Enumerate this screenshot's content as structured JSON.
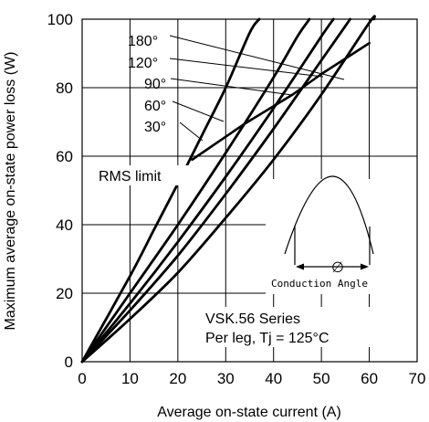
{
  "chart_data": {
    "type": "line",
    "xlabel": "Average on-state current (A)",
    "ylabel": "Maximum average on-state power loss (W)",
    "xlim": [
      0,
      70
    ],
    "ylim": [
      0,
      100
    ],
    "x_ticks": [
      "0",
      "10",
      "20",
      "30",
      "40",
      "50",
      "60",
      "70"
    ],
    "y_ticks": [
      "0",
      "20",
      "40",
      "60",
      "80",
      "100"
    ],
    "grid": true,
    "series": [
      {
        "name": "30°",
        "points": [
          [
            0,
            0
          ],
          [
            10,
            25
          ],
          [
            15,
            38.5
          ],
          [
            20,
            52
          ],
          [
            25,
            66
          ],
          [
            30,
            80
          ],
          [
            35,
            96
          ],
          [
            37,
            100
          ]
        ]
      },
      {
        "name": "60°",
        "points": [
          [
            0,
            0
          ],
          [
            10,
            20
          ],
          [
            20,
            40
          ],
          [
            30,
            61
          ],
          [
            40,
            83
          ],
          [
            45,
            95
          ],
          [
            47.5,
            100
          ]
        ]
      },
      {
        "name": "90°",
        "points": [
          [
            0,
            0
          ],
          [
            10,
            17
          ],
          [
            20,
            35
          ],
          [
            30,
            54
          ],
          [
            40,
            74
          ],
          [
            50,
            95
          ],
          [
            52.5,
            100
          ]
        ]
      },
      {
        "name": "120°",
        "points": [
          [
            0,
            0
          ],
          [
            10,
            15
          ],
          [
            20,
            31
          ],
          [
            30,
            49
          ],
          [
            40,
            68
          ],
          [
            50,
            88
          ],
          [
            56,
            100
          ]
        ]
      },
      {
        "name": "180°",
        "points": [
          [
            0,
            0
          ],
          [
            10,
            12.5
          ],
          [
            20,
            26
          ],
          [
            30,
            42
          ],
          [
            40,
            59
          ],
          [
            50,
            78
          ],
          [
            60,
            99
          ],
          [
            61,
            100
          ]
        ]
      },
      {
        "name": "RMS limit",
        "points": [
          [
            23,
            59
          ],
          [
            34,
            69.5
          ],
          [
            44,
            78
          ],
          [
            50,
            84
          ],
          [
            60,
            93
          ]
        ]
      }
    ],
    "annotations": {
      "labels": [
        "180°",
        "120°",
        "90°",
        "60°",
        "30°"
      ],
      "rms_label": "RMS limit",
      "series_text": "VSK.56 Series",
      "condition_text": "Per leg,  Tj = 125°C"
    },
    "inset": {
      "phi_symbol": "∅",
      "conduction_label": "Conduction  Angle"
    }
  }
}
